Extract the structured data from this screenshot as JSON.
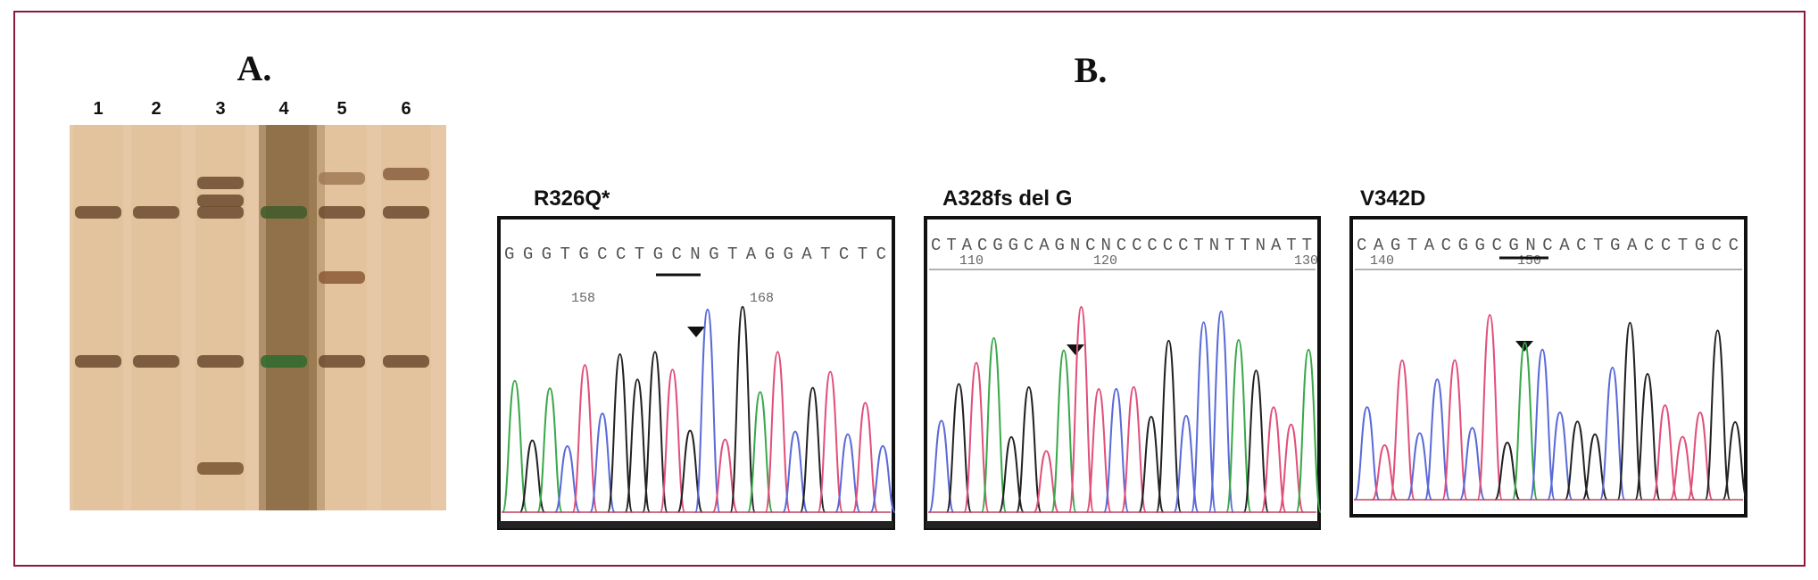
{
  "panel_a": {
    "label": "A.",
    "lanes": [
      "1",
      "2",
      "3",
      "4",
      "5",
      "6"
    ]
  },
  "panel_b": {
    "label": "B.",
    "traces": [
      {
        "title": "R326Q*",
        "sequence": "GGGTGCCTGCNGTAGGATCTC",
        "positions": [
          "158",
          "168"
        ]
      },
      {
        "title": "A328fs del G",
        "sequence": "CTACGGCAGNCNCCCCCTNTTNATT",
        "positions": [
          "110",
          "120",
          "130"
        ]
      },
      {
        "title": "V342D",
        "sequence": "CAGTACGGCGNCACTGACCTGCC",
        "positions": [
          "140",
          "150"
        ]
      }
    ]
  }
}
